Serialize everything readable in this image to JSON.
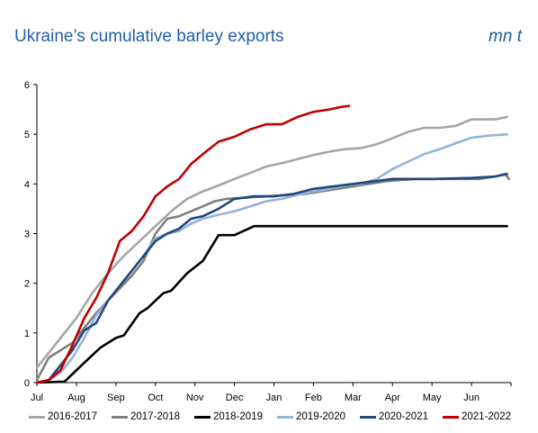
{
  "header": {
    "title": "Ukraine’s cumulative barley exports",
    "unit": "mn t"
  },
  "chart_data": {
    "type": "line",
    "title": "Ukraine’s cumulative barley exports",
    "unit_label": "mn t",
    "xlabel": "",
    "ylabel": "",
    "ylim": [
      0,
      6
    ],
    "yticks": [
      "0",
      "1",
      "2",
      "3",
      "4",
      "5",
      "6"
    ],
    "x_tick_labels": [
      "Jul",
      "Aug",
      "Sep",
      "Oct",
      "Nov",
      "Dec",
      "Jan",
      "Feb",
      "Mar",
      "Apr",
      "May",
      "Jun"
    ],
    "x_unit": "month index (0 = start of Jul, 12 = end of Jun)",
    "xlim": [
      0,
      12
    ],
    "grid": false,
    "legend_position": "bottom",
    "series": [
      {
        "name": "2016-2017",
        "color": "#a6a6a6",
        "x": [
          0,
          0.3,
          0.6,
          1.0,
          1.4,
          1.8,
          2.2,
          2.6,
          3.0,
          3.4,
          3.8,
          4.2,
          4.6,
          5.0,
          5.4,
          5.8,
          6.2,
          6.6,
          7.0,
          7.4,
          7.8,
          8.2,
          8.6,
          9.0,
          9.4,
          9.8,
          10.2,
          10.6,
          11.0,
          11.4,
          11.6,
          11.9
        ],
        "y": [
          0.3,
          0.6,
          0.9,
          1.3,
          1.8,
          2.2,
          2.55,
          2.85,
          3.15,
          3.45,
          3.7,
          3.85,
          3.97,
          4.1,
          4.22,
          4.35,
          4.42,
          4.5,
          4.58,
          4.65,
          4.7,
          4.72,
          4.8,
          4.92,
          5.05,
          5.13,
          5.13,
          5.17,
          5.3,
          5.3,
          5.3,
          5.35
        ]
      },
      {
        "name": "2017-2018",
        "color": "#7f7f7f",
        "x": [
          0,
          0.3,
          0.6,
          0.9,
          1.2,
          1.5,
          1.8,
          2.1,
          2.4,
          2.7,
          3.0,
          3.3,
          3.6,
          3.9,
          4.2,
          4.5,
          4.8,
          5.2,
          5.6,
          6.0,
          6.4,
          6.8,
          7.2,
          7.6,
          8.0,
          8.4,
          8.8,
          9.2,
          9.6,
          10.0,
          10.4,
          10.8,
          11.2,
          11.6,
          11.85,
          11.95
        ],
        "y": [
          0.05,
          0.5,
          0.65,
          0.8,
          1.1,
          1.4,
          1.65,
          1.9,
          2.15,
          2.45,
          3.0,
          3.3,
          3.35,
          3.45,
          3.55,
          3.65,
          3.7,
          3.72,
          3.74,
          3.76,
          3.78,
          3.8,
          3.85,
          3.9,
          3.95,
          4.0,
          4.05,
          4.08,
          4.1,
          4.1,
          4.1,
          4.1,
          4.1,
          4.15,
          4.2,
          4.1
        ]
      },
      {
        "name": "2018-2019",
        "color": "#000000",
        "x": [
          0,
          0.7,
          1.2,
          1.6,
          2.0,
          2.2,
          2.6,
          2.8,
          3.2,
          3.4,
          3.8,
          4.2,
          4.6,
          5.0,
          5.5,
          5.8,
          6.0,
          6.4,
          7.0,
          8.0,
          9.0,
          10.0,
          11.0,
          11.9
        ],
        "y": [
          0,
          0.02,
          0.4,
          0.7,
          0.9,
          0.95,
          1.4,
          1.5,
          1.8,
          1.85,
          2.2,
          2.45,
          2.97,
          2.97,
          3.15,
          3.15,
          3.15,
          3.15,
          3.15,
          3.15,
          3.15,
          3.15,
          3.15,
          3.15
        ]
      },
      {
        "name": "2019-2020",
        "color": "#95b3d7",
        "x": [
          0,
          0.3,
          0.6,
          0.9,
          1.2,
          1.5,
          1.8,
          2.1,
          2.4,
          2.7,
          3.0,
          3.3,
          3.6,
          3.9,
          4.2,
          4.6,
          5.0,
          5.4,
          5.8,
          6.2,
          6.6,
          7.0,
          7.4,
          7.8,
          8.2,
          8.6,
          9.0,
          9.4,
          9.8,
          10.2,
          10.6,
          11.0,
          11.4,
          11.9
        ],
        "y": [
          0,
          0.05,
          0.2,
          0.5,
          0.9,
          1.35,
          1.65,
          1.95,
          2.25,
          2.55,
          2.9,
          3.0,
          3.05,
          3.2,
          3.3,
          3.38,
          3.45,
          3.55,
          3.65,
          3.7,
          3.78,
          3.85,
          3.9,
          3.97,
          4.0,
          4.1,
          4.3,
          4.45,
          4.6,
          4.7,
          4.82,
          4.93,
          4.97,
          5.0
        ]
      },
      {
        "name": "2020-2021",
        "color": "#1f497d",
        "x": [
          0,
          0.3,
          0.6,
          0.9,
          1.2,
          1.5,
          1.8,
          2.1,
          2.4,
          2.7,
          3.0,
          3.3,
          3.6,
          3.9,
          4.2,
          4.6,
          5.0,
          5.5,
          6.0,
          6.5,
          7.0,
          7.5,
          8.0,
          8.5,
          9.0,
          10.0,
          11.0,
          11.6,
          11.9
        ],
        "y": [
          0,
          0.05,
          0.35,
          0.65,
          1.05,
          1.2,
          1.65,
          1.95,
          2.25,
          2.55,
          2.85,
          3.0,
          3.1,
          3.3,
          3.35,
          3.5,
          3.7,
          3.75,
          3.75,
          3.8,
          3.9,
          3.95,
          4.0,
          4.05,
          4.1,
          4.1,
          4.12,
          4.15,
          4.2
        ]
      },
      {
        "name": "2021-2022",
        "color": "#c00000",
        "x": [
          0,
          0.3,
          0.6,
          0.9,
          1.2,
          1.5,
          1.8,
          2.1,
          2.4,
          2.7,
          3.0,
          3.3,
          3.6,
          3.9,
          4.2,
          4.6,
          5.0,
          5.4,
          5.8,
          6.2,
          6.6,
          7.0,
          7.4,
          7.7,
          7.9
        ],
        "y": [
          0,
          0.05,
          0.25,
          0.75,
          1.3,
          1.7,
          2.2,
          2.85,
          3.05,
          3.35,
          3.75,
          3.95,
          4.1,
          4.4,
          4.6,
          4.85,
          4.95,
          5.1,
          5.2,
          5.2,
          5.35,
          5.45,
          5.5,
          5.55,
          5.57
        ]
      }
    ]
  }
}
